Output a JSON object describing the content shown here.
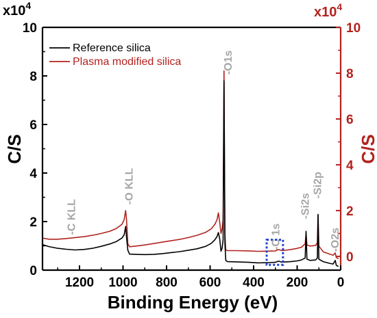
{
  "chart_data": {
    "type": "line",
    "xlabel": "Binding Energy (eV)",
    "ylabel_left": "C/S",
    "ylabel_right": "C/S",
    "multiplier_left": "x10",
    "multiplier_left_exp": "4",
    "multiplier_right": "x10",
    "multiplier_right_exp": "4",
    "xlim": [
      1370,
      0
    ],
    "xticks": [
      1200,
      1000,
      800,
      600,
      400,
      200,
      0
    ],
    "ylim_left": [
      0,
      10
    ],
    "yticks_left": [
      0,
      2,
      4,
      6,
      8,
      10
    ],
    "ylim_right": [
      -0.6,
      10
    ],
    "yticks_right": [
      0,
      2,
      4,
      6,
      8,
      10
    ],
    "grid": false,
    "legend_position": "top-left",
    "colors": {
      "reference": "#000000",
      "plasma": "#b2221e",
      "highlight_box": "#1f3fd1",
      "peak_labels": "#a6a6a6",
      "right_axis": "#b2221e"
    },
    "series": [
      {
        "name": "Reference silica",
        "axis": "left",
        "points": [
          [
            1370,
            1.05
          ],
          [
            1340,
            0.97
          ],
          [
            1300,
            0.9
          ],
          [
            1260,
            0.86
          ],
          [
            1220,
            0.83
          ],
          [
            1180,
            0.85
          ],
          [
            1140,
            0.9
          ],
          [
            1100,
            0.98
          ],
          [
            1060,
            1.08
          ],
          [
            1030,
            1.18
          ],
          [
            1005,
            1.32
          ],
          [
            995,
            1.45
          ],
          [
            988,
            1.8
          ],
          [
            984,
            1.35
          ],
          [
            978,
            0.82
          ],
          [
            970,
            0.66
          ],
          [
            940,
            0.65
          ],
          [
            900,
            0.64
          ],
          [
            860,
            0.65
          ],
          [
            820,
            0.68
          ],
          [
            780,
            0.72
          ],
          [
            740,
            0.76
          ],
          [
            700,
            0.82
          ],
          [
            660,
            0.88
          ],
          [
            620,
            0.98
          ],
          [
            595,
            1.1
          ],
          [
            578,
            1.25
          ],
          [
            568,
            1.38
          ],
          [
            562,
            1.55
          ],
          [
            556,
            1.3
          ],
          [
            550,
            0.78
          ],
          [
            545,
            0.9
          ],
          [
            540,
            1.25
          ],
          [
            536,
            7.8
          ],
          [
            532,
            1.1
          ],
          [
            528,
            0.4
          ],
          [
            520,
            0.35
          ],
          [
            480,
            0.34
          ],
          [
            420,
            0.32
          ],
          [
            380,
            0.3
          ],
          [
            330,
            0.31
          ],
          [
            300,
            0.32
          ],
          [
            286,
            0.37
          ],
          [
            270,
            0.33
          ],
          [
            230,
            0.35
          ],
          [
            200,
            0.38
          ],
          [
            180,
            0.42
          ],
          [
            163,
            0.5
          ],
          [
            159,
            1.6
          ],
          [
            155,
            0.45
          ],
          [
            140,
            0.4
          ],
          [
            115,
            0.42
          ],
          [
            107,
            0.5
          ],
          [
            104,
            2.3
          ],
          [
            100,
            0.45
          ],
          [
            80,
            0.35
          ],
          [
            50,
            0.28
          ],
          [
            35,
            0.25
          ],
          [
            25,
            0.4
          ],
          [
            20,
            0.2
          ],
          [
            10,
            0.15
          ]
        ]
      },
      {
        "name": "Plasma modified silica",
        "axis": "right",
        "points": [
          [
            1370,
            0.8
          ],
          [
            1340,
            0.75
          ],
          [
            1300,
            0.75
          ],
          [
            1260,
            0.78
          ],
          [
            1220,
            0.82
          ],
          [
            1180,
            0.86
          ],
          [
            1140,
            0.92
          ],
          [
            1100,
            1.0
          ],
          [
            1060,
            1.1
          ],
          [
            1030,
            1.22
          ],
          [
            1005,
            1.4
          ],
          [
            995,
            1.6
          ],
          [
            988,
            2.0
          ],
          [
            984,
            1.6
          ],
          [
            978,
            0.55
          ],
          [
            970,
            0.42
          ],
          [
            940,
            0.45
          ],
          [
            900,
            0.5
          ],
          [
            860,
            0.56
          ],
          [
            820,
            0.62
          ],
          [
            780,
            0.68
          ],
          [
            740,
            0.74
          ],
          [
            700,
            0.82
          ],
          [
            660,
            0.92
          ],
          [
            620,
            1.05
          ],
          [
            595,
            1.2
          ],
          [
            578,
            1.4
          ],
          [
            568,
            1.6
          ],
          [
            562,
            1.9
          ],
          [
            556,
            1.5
          ],
          [
            550,
            1.0
          ],
          [
            545,
            1.2
          ],
          [
            540,
            1.6
          ],
          [
            536,
            8.1
          ],
          [
            532,
            1.0
          ],
          [
            528,
            0.28
          ],
          [
            520,
            0.25
          ],
          [
            480,
            0.25
          ],
          [
            420,
            0.24
          ],
          [
            380,
            0.22
          ],
          [
            330,
            0.23
          ],
          [
            300,
            0.24
          ],
          [
            286,
            0.3
          ],
          [
            270,
            0.25
          ],
          [
            230,
            0.3
          ],
          [
            200,
            0.35
          ],
          [
            180,
            0.4
          ],
          [
            163,
            0.55
          ],
          [
            159,
            1.0
          ],
          [
            155,
            0.5
          ],
          [
            140,
            0.45
          ],
          [
            115,
            0.48
          ],
          [
            107,
            0.6
          ],
          [
            104,
            1.8
          ],
          [
            100,
            0.45
          ],
          [
            80,
            0.2
          ],
          [
            50,
            0.1
          ],
          [
            35,
            0.05
          ],
          [
            25,
            0.15
          ],
          [
            20,
            -0.05
          ],
          [
            10,
            -0.1
          ]
        ]
      }
    ],
    "annotations": [
      {
        "text": "-C KLL",
        "x": 1240,
        "y": 1.45
      },
      {
        "text": "-O KLL",
        "x": 975,
        "y": 2.7
      },
      {
        "text": "-O1s",
        "x": 520,
        "y": 8.05
      },
      {
        "text": "-C 1s",
        "x": 300,
        "y": 0.82
      },
      {
        "text": "-Si2s",
        "x": 165,
        "y": 2.1
      },
      {
        "text": "-Si2p",
        "x": 108,
        "y": 2.95
      },
      {
        "text": "-O2s",
        "x": 28,
        "y": 0.75
      }
    ],
    "highlight": {
      "x_from": 340,
      "x_to": 265,
      "y_from": 0.22,
      "y_to": 1.25
    }
  }
}
